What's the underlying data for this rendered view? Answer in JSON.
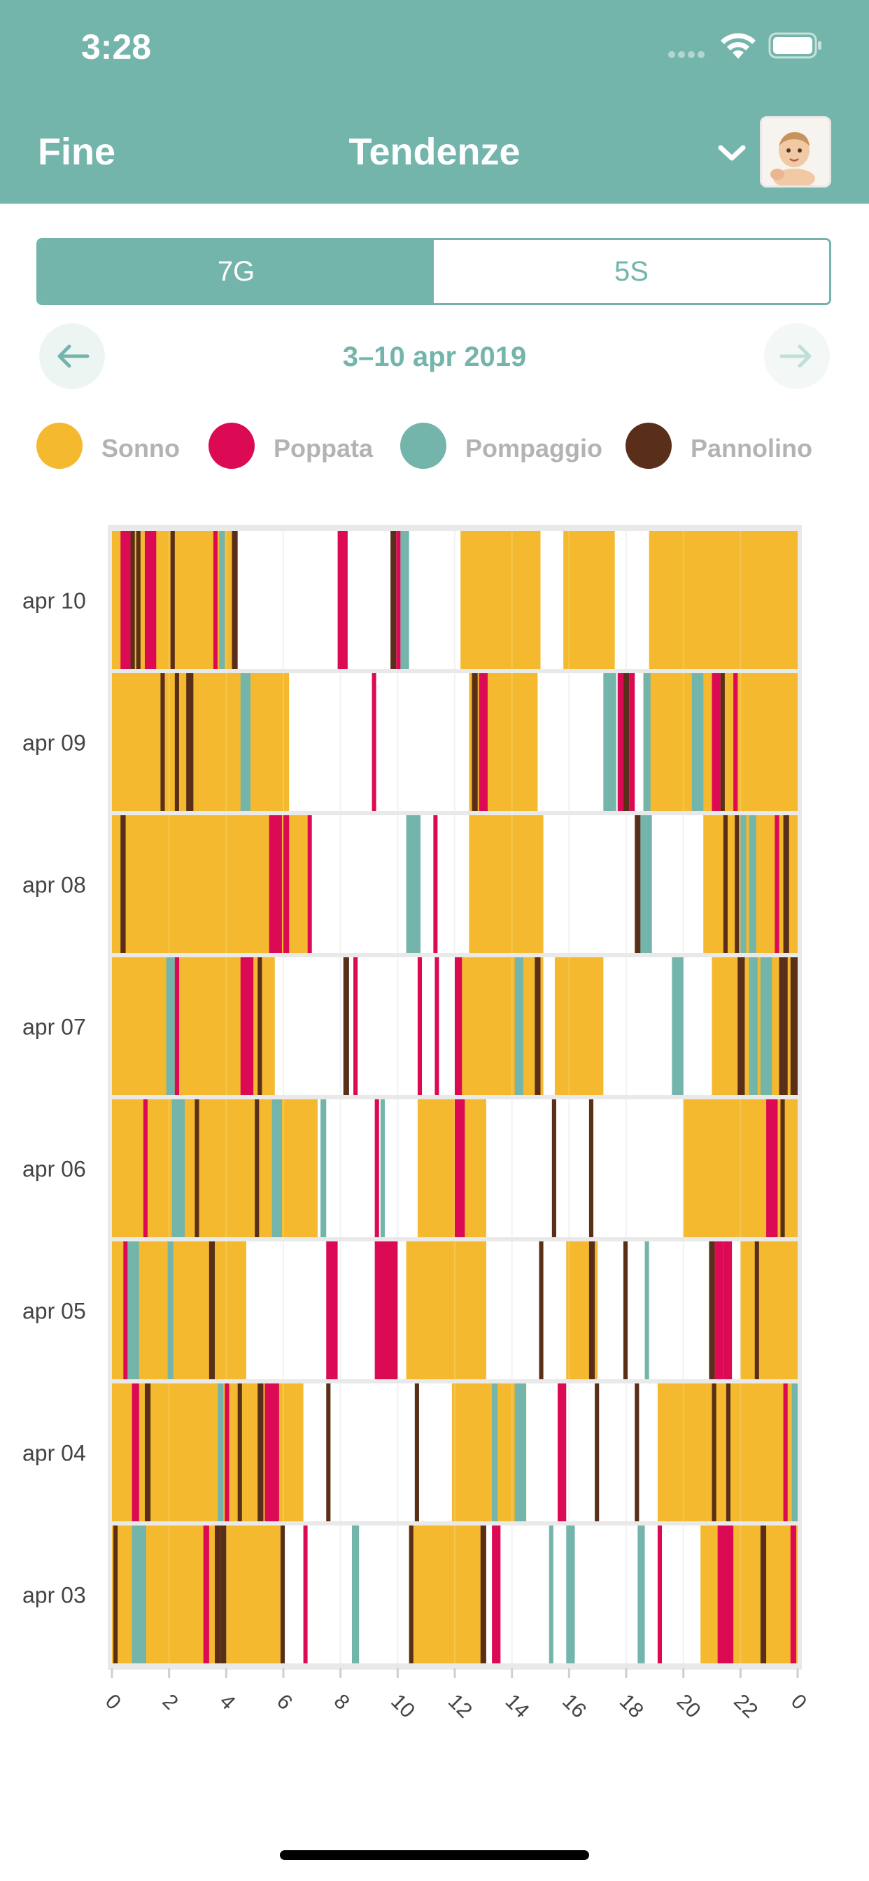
{
  "status_bar": {
    "time": "3:28"
  },
  "header": {
    "done_label": "Fine",
    "title": "Tendenze"
  },
  "segmented": {
    "options": [
      "7G",
      "5S"
    ],
    "selected": "7G"
  },
  "date_nav": {
    "range": "3–10 apr 2019"
  },
  "legend": [
    {
      "label": "Sonno",
      "color": "#f4b92e"
    },
    {
      "label": "Poppata",
      "color": "#dc0a55"
    },
    {
      "label": "Pompaggio",
      "color": "#74b5ab"
    },
    {
      "label": "Pannolino",
      "color": "#5a2f1a"
    }
  ],
  "chart_data": {
    "type": "timeline",
    "x_range": [
      0,
      24
    ],
    "x_tick_labels": [
      "0",
      "2",
      "4",
      "6",
      "8",
      "10",
      "12",
      "14",
      "16",
      "18",
      "20",
      "22",
      "0"
    ],
    "colors": {
      "sleep": "#f4b92e",
      "feed": "#dc0a55",
      "pump": "#74b5ab",
      "diaper": "#5a2f1a"
    },
    "days": [
      {
        "label": "apr 10",
        "sleep": [
          [
            0,
            4.2
          ],
          [
            12.2,
            15
          ],
          [
            15.8,
            17.6
          ],
          [
            18.8,
            24
          ]
        ],
        "events": [
          {
            "t": 0.3,
            "type": "feed",
            "w": 0.35
          },
          {
            "t": 0.65,
            "type": "diaper",
            "w": 0.15
          },
          {
            "t": 0.85,
            "type": "diaper",
            "w": 0.15
          },
          {
            "t": 1.15,
            "type": "feed",
            "w": 0.4
          },
          {
            "t": 2.05,
            "type": "diaper",
            "w": 0.15
          },
          {
            "t": 3.55,
            "type": "feed",
            "w": 0.1
          },
          {
            "t": 3.75,
            "type": "pump",
            "w": 0.2
          },
          {
            "t": 4.2,
            "type": "diaper",
            "w": 0.2
          },
          {
            "t": 7.9,
            "type": "feed",
            "w": 0.35
          },
          {
            "t": 9.75,
            "type": "diaper",
            "w": 0.2
          },
          {
            "t": 9.95,
            "type": "feed",
            "w": 0.15
          },
          {
            "t": 10.1,
            "type": "pump",
            "w": 0.3
          }
        ]
      },
      {
        "label": "apr 09",
        "sleep": [
          [
            0,
            6.2
          ],
          [
            12.5,
            14.9
          ],
          [
            18.6,
            24
          ]
        ],
        "events": [
          {
            "t": 1.7,
            "type": "diaper",
            "w": 0.15
          },
          {
            "t": 2.2,
            "type": "diaper",
            "w": 0.15
          },
          {
            "t": 2.6,
            "type": "diaper",
            "w": 0.25
          },
          {
            "t": 4.5,
            "type": "pump",
            "w": 0.35
          },
          {
            "t": 9.1,
            "type": "feed",
            "w": 0.12
          },
          {
            "t": 12.6,
            "type": "diaper",
            "w": 0.2
          },
          {
            "t": 12.85,
            "type": "feed",
            "w": 0.3
          },
          {
            "t": 17.2,
            "type": "pump",
            "w": 0.45
          },
          {
            "t": 17.7,
            "type": "feed",
            "w": 0.2
          },
          {
            "t": 17.9,
            "type": "diaper",
            "w": 0.2
          },
          {
            "t": 18.1,
            "type": "feed",
            "w": 0.2
          },
          {
            "t": 18.6,
            "type": "pump",
            "w": 0.25
          },
          {
            "t": 20.3,
            "type": "pump",
            "w": 0.4
          },
          {
            "t": 21.0,
            "type": "feed",
            "w": 0.3
          },
          {
            "t": 21.3,
            "type": "diaper",
            "w": 0.15
          },
          {
            "t": 21.75,
            "type": "feed",
            "w": 0.15
          }
        ]
      },
      {
        "label": "apr 08",
        "sleep": [
          [
            0,
            6.9
          ],
          [
            12.5,
            15.1
          ],
          [
            20.7,
            24
          ]
        ],
        "events": [
          {
            "t": 0.3,
            "type": "diaper",
            "w": 0.18
          },
          {
            "t": 5.5,
            "type": "feed",
            "w": 0.45
          },
          {
            "t": 6.0,
            "type": "feed",
            "w": 0.2
          },
          {
            "t": 6.85,
            "type": "feed",
            "w": 0.12
          },
          {
            "t": 10.3,
            "type": "pump",
            "w": 0.5
          },
          {
            "t": 11.25,
            "type": "feed",
            "w": 0.12
          },
          {
            "t": 18.3,
            "type": "diaper",
            "w": 0.2
          },
          {
            "t": 18.5,
            "type": "pump",
            "w": 0.4
          },
          {
            "t": 21.4,
            "type": "diaper",
            "w": 0.15
          },
          {
            "t": 21.8,
            "type": "diaper",
            "w": 0.15
          },
          {
            "t": 22.0,
            "type": "pump",
            "w": 0.2
          },
          {
            "t": 22.3,
            "type": "pump",
            "w": 0.25
          },
          {
            "t": 23.2,
            "type": "feed",
            "w": 0.15
          },
          {
            "t": 23.5,
            "type": "diaper",
            "w": 0.2
          }
        ]
      },
      {
        "label": "apr 07",
        "sleep": [
          [
            0,
            5.7
          ],
          [
            12.2,
            15.1
          ],
          [
            15.5,
            17.2
          ],
          [
            21,
            24
          ]
        ],
        "events": [
          {
            "t": 1.9,
            "type": "pump",
            "w": 0.3
          },
          {
            "t": 2.2,
            "type": "feed",
            "w": 0.15
          },
          {
            "t": 4.5,
            "type": "feed",
            "w": 0.45
          },
          {
            "t": 5.1,
            "type": "diaper",
            "w": 0.15
          },
          {
            "t": 8.1,
            "type": "diaper",
            "w": 0.2
          },
          {
            "t": 8.45,
            "type": "feed",
            "w": 0.15
          },
          {
            "t": 10.7,
            "type": "feed",
            "w": 0.15
          },
          {
            "t": 11.3,
            "type": "feed",
            "w": 0.1
          },
          {
            "t": 12.0,
            "type": "feed",
            "w": 0.25
          },
          {
            "t": 14.1,
            "type": "pump",
            "w": 0.3
          },
          {
            "t": 14.8,
            "type": "diaper",
            "w": 0.2
          },
          {
            "t": 19.6,
            "type": "pump",
            "w": 0.4
          },
          {
            "t": 21.9,
            "type": "diaper",
            "w": 0.25
          },
          {
            "t": 22.3,
            "type": "pump",
            "w": 0.3
          },
          {
            "t": 22.7,
            "type": "pump",
            "w": 0.4
          },
          {
            "t": 23.35,
            "type": "diaper",
            "w": 0.3
          },
          {
            "t": 23.75,
            "type": "diaper",
            "w": 0.25
          }
        ]
      },
      {
        "label": "apr 06",
        "sleep": [
          [
            0,
            7.2
          ],
          [
            10.7,
            13.1
          ],
          [
            20,
            24
          ]
        ],
        "events": [
          {
            "t": 1.1,
            "type": "feed",
            "w": 0.1
          },
          {
            "t": 2.1,
            "type": "pump",
            "w": 0.45
          },
          {
            "t": 2.9,
            "type": "diaper",
            "w": 0.15
          },
          {
            "t": 5.0,
            "type": "diaper",
            "w": 0.15
          },
          {
            "t": 5.6,
            "type": "pump",
            "w": 0.35
          },
          {
            "t": 7.3,
            "type": "pump",
            "w": 0.2
          },
          {
            "t": 9.2,
            "type": "feed",
            "w": 0.15
          },
          {
            "t": 9.4,
            "type": "pump",
            "w": 0.15
          },
          {
            "t": 12.0,
            "type": "feed",
            "w": 0.35
          },
          {
            "t": 15.4,
            "type": "diaper",
            "w": 0.15
          },
          {
            "t": 16.7,
            "type": "diaper",
            "w": 0.15
          },
          {
            "t": 22.9,
            "type": "feed",
            "w": 0.4
          },
          {
            "t": 23.4,
            "type": "diaper",
            "w": 0.15
          }
        ]
      },
      {
        "label": "apr 05",
        "sleep": [
          [
            0,
            4.7
          ],
          [
            10.3,
            13.1
          ],
          [
            15.9,
            17.0
          ],
          [
            22,
            24
          ]
        ],
        "events": [
          {
            "t": 0.4,
            "type": "feed",
            "w": 0.1
          },
          {
            "t": 0.55,
            "type": "pump",
            "w": 0.4
          },
          {
            "t": 1.95,
            "type": "pump",
            "w": 0.2
          },
          {
            "t": 3.4,
            "type": "diaper",
            "w": 0.2
          },
          {
            "t": 7.5,
            "type": "feed",
            "w": 0.4
          },
          {
            "t": 9.2,
            "type": "feed",
            "w": 0.8
          },
          {
            "t": 14.95,
            "type": "diaper",
            "w": 0.15
          },
          {
            "t": 16.7,
            "type": "diaper",
            "w": 0.2
          },
          {
            "t": 17.9,
            "type": "diaper",
            "w": 0.15
          },
          {
            "t": 18.65,
            "type": "pump",
            "w": 0.15
          },
          {
            "t": 20.9,
            "type": "diaper",
            "w": 0.2
          },
          {
            "t": 21.1,
            "type": "feed",
            "w": 0.3
          },
          {
            "t": 21.4,
            "type": "feed",
            "w": 0.3
          },
          {
            "t": 22.5,
            "type": "diaper",
            "w": 0.15
          }
        ]
      },
      {
        "label": "apr 04",
        "sleep": [
          [
            0,
            6.7
          ],
          [
            11.9,
            14.5
          ],
          [
            19.1,
            24
          ]
        ],
        "events": [
          {
            "t": 0.7,
            "type": "feed",
            "w": 0.25
          },
          {
            "t": 1.15,
            "type": "diaper",
            "w": 0.2
          },
          {
            "t": 3.7,
            "type": "pump",
            "w": 0.2
          },
          {
            "t": 3.95,
            "type": "feed",
            "w": 0.15
          },
          {
            "t": 4.4,
            "type": "diaper",
            "w": 0.15
          },
          {
            "t": 5.1,
            "type": "diaper",
            "w": 0.2
          },
          {
            "t": 5.35,
            "type": "feed",
            "w": 0.5
          },
          {
            "t": 7.5,
            "type": "diaper",
            "w": 0.15
          },
          {
            "t": 10.6,
            "type": "diaper",
            "w": 0.15
          },
          {
            "t": 13.3,
            "type": "pump",
            "w": 0.2
          },
          {
            "t": 14.1,
            "type": "pump",
            "w": 0.4
          },
          {
            "t": 15.6,
            "type": "feed",
            "w": 0.3
          },
          {
            "t": 16.9,
            "type": "diaper",
            "w": 0.15
          },
          {
            "t": 18.3,
            "type": "diaper",
            "w": 0.15
          },
          {
            "t": 21.0,
            "type": "diaper",
            "w": 0.15
          },
          {
            "t": 21.5,
            "type": "diaper",
            "w": 0.15
          },
          {
            "t": 23.5,
            "type": "feed",
            "w": 0.15
          },
          {
            "t": 23.8,
            "type": "pump",
            "w": 0.2
          }
        ]
      },
      {
        "label": "apr 03",
        "sleep": [
          [
            0,
            5.9
          ],
          [
            10.4,
            13.1
          ],
          [
            20.6,
            24
          ]
        ],
        "events": [
          {
            "t": 0.05,
            "type": "diaper",
            "w": 0.15
          },
          {
            "t": 0.7,
            "type": "pump",
            "w": 0.5
          },
          {
            "t": 3.2,
            "type": "feed",
            "w": 0.2
          },
          {
            "t": 3.6,
            "type": "diaper",
            "w": 0.2
          },
          {
            "t": 3.8,
            "type": "diaper",
            "w": 0.2
          },
          {
            "t": 5.9,
            "type": "diaper",
            "w": 0.15
          },
          {
            "t": 6.7,
            "type": "feed",
            "w": 0.1
          },
          {
            "t": 8.4,
            "type": "pump",
            "w": 0.25
          },
          {
            "t": 10.4,
            "type": "diaper",
            "w": 0.15
          },
          {
            "t": 12.9,
            "type": "diaper",
            "w": 0.2
          },
          {
            "t": 13.3,
            "type": "feed",
            "w": 0.3
          },
          {
            "t": 15.3,
            "type": "pump",
            "w": 0.15
          },
          {
            "t": 15.9,
            "type": "pump",
            "w": 0.3
          },
          {
            "t": 18.4,
            "type": "pump",
            "w": 0.25
          },
          {
            "t": 19.1,
            "type": "feed",
            "w": 0.15
          },
          {
            "t": 21.2,
            "type": "feed",
            "w": 0.55
          },
          {
            "t": 22.7,
            "type": "diaper",
            "w": 0.2
          },
          {
            "t": 23.75,
            "type": "feed",
            "w": 0.2
          }
        ]
      }
    ]
  }
}
